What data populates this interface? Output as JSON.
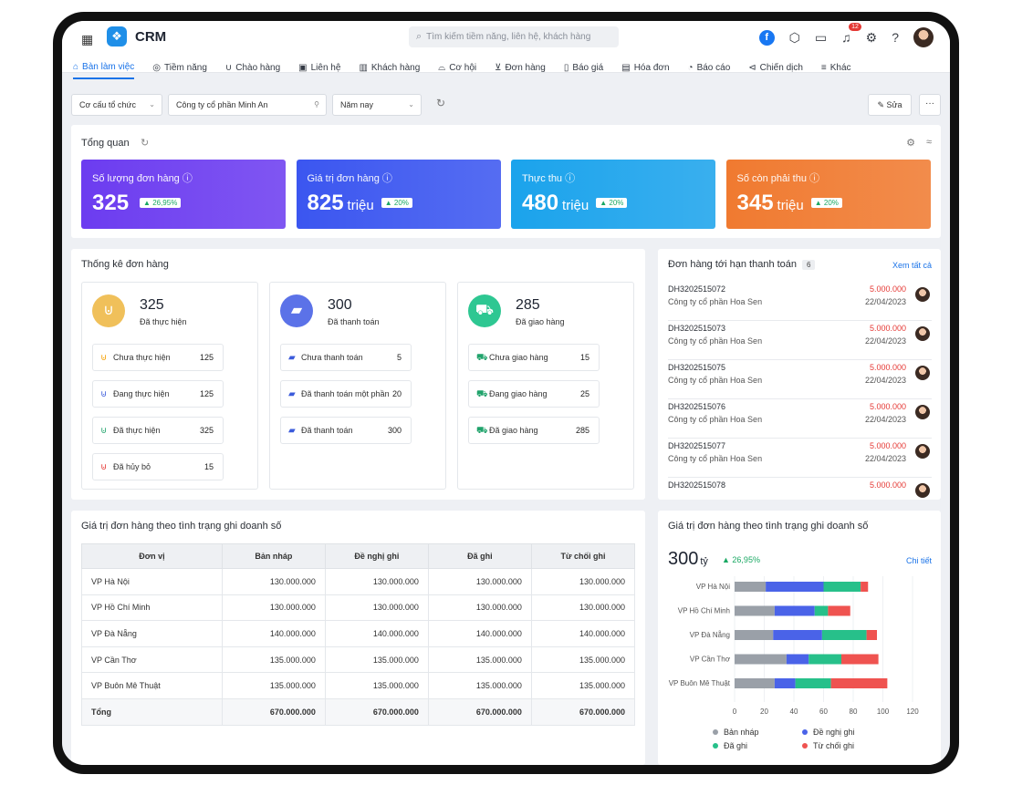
{
  "app": {
    "name": "CRM",
    "search_placeholder": "Tìm kiếm tiềm năng, liên hệ, khách hàng",
    "notif_count": "12"
  },
  "nav": [
    {
      "label": "Bàn làm việc",
      "icon": "home-icon"
    },
    {
      "label": "Tiềm năng",
      "icon": "target-icon"
    },
    {
      "label": "Chào hàng",
      "icon": "magnet-icon"
    },
    {
      "label": "Liên hệ",
      "icon": "contact-icon"
    },
    {
      "label": "Khách hàng",
      "icon": "customers-icon"
    },
    {
      "label": "Cơ hội",
      "icon": "opportunity-icon"
    },
    {
      "label": "Đơn hàng",
      "icon": "cart-icon"
    },
    {
      "label": "Báo giá",
      "icon": "quote-icon"
    },
    {
      "label": "Hóa đơn",
      "icon": "invoice-icon"
    },
    {
      "label": "Báo cáo",
      "icon": "report-icon"
    },
    {
      "label": "Chiến dịch",
      "icon": "campaign-icon"
    },
    {
      "label": "Khác",
      "icon": "menu-icon"
    }
  ],
  "filters": {
    "org": "Cơ cấu tổ chức",
    "company": "Công ty cổ phần Minh An",
    "period": "Năm nay",
    "edit": "Sửa",
    "more": "···"
  },
  "overview": {
    "title": "Tổng quan",
    "cards": [
      {
        "title": "Số lượng đơn hàng",
        "value": "325",
        "unit": "",
        "change": "26,95%",
        "color": "#6c3cf0"
      },
      {
        "title": "Giá trị đơn hàng",
        "value": "825",
        "unit": "triệu",
        "change": "20%",
        "color": "#3b56f0"
      },
      {
        "title": "Thực thu",
        "value": "480",
        "unit": "triệu",
        "change": "20%",
        "color": "#1ba3ec"
      },
      {
        "title": "Số còn phải thu",
        "value": "345",
        "unit": "triệu",
        "change": "20%",
        "color": "#f07a30"
      }
    ]
  },
  "order_stats": {
    "title": "Thống kê đơn hàng",
    "groups": [
      {
        "total": "325",
        "label": "Đã thực hiện",
        "color": "#f0c05a",
        "rows": [
          {
            "label": "Chưa thực hiện",
            "value": "125"
          },
          {
            "label": "Đang thực hiện",
            "value": "125"
          },
          {
            "label": "Đã thực hiện",
            "value": "325"
          },
          {
            "label": "Đã hủy bỏ",
            "value": "15"
          }
        ]
      },
      {
        "total": "300",
        "label": "Đã thanh toán",
        "color": "#5b72e8",
        "rows": [
          {
            "label": "Chưa thanh toán",
            "value": "5"
          },
          {
            "label": "Đã thanh toán một phần",
            "value": "20"
          },
          {
            "label": "Đã thanh toán",
            "value": "300"
          }
        ]
      },
      {
        "total": "285",
        "label": "Đã giao hàng",
        "color": "#2ec792",
        "rows": [
          {
            "label": "Chưa giao hàng",
            "value": "15"
          },
          {
            "label": "Đang giao hàng",
            "value": "25"
          },
          {
            "label": "Đã giao hàng",
            "value": "285"
          }
        ]
      }
    ]
  },
  "due": {
    "title": "Đơn hàng tới hạn thanh toán",
    "count": "6",
    "see_all": "Xem tất cả",
    "items": [
      {
        "code": "DH3202515072",
        "company": "Công ty cổ phần Hoa Sen",
        "amount": "5.000.000",
        "date": "22/04/2023"
      },
      {
        "code": "DH3202515073",
        "company": "Công ty cổ phần Hoa Sen",
        "amount": "5.000.000",
        "date": "22/04/2023"
      },
      {
        "code": "DH3202515075",
        "company": "Công ty cổ phần Hoa Sen",
        "amount": "5.000.000",
        "date": "22/04/2023"
      },
      {
        "code": "DH3202515076",
        "company": "Công ty cổ phần Hoa Sen",
        "amount": "5.000.000",
        "date": "22/04/2023"
      },
      {
        "code": "DH3202515077",
        "company": "Công ty cổ phần Hoa Sen",
        "amount": "5.000.000",
        "date": "22/04/2023"
      },
      {
        "code": "DH3202515078",
        "company": "",
        "amount": "5.000.000",
        "date": ""
      }
    ]
  },
  "table": {
    "title": "Giá trị đơn hàng theo tình trạng ghi doanh số",
    "headers": [
      "Đơn vị",
      "Bản nháp",
      "Đề nghị ghi",
      "Đã ghi",
      "Từ chối ghi"
    ],
    "rows": [
      [
        "VP Hà Nội",
        "130.000.000",
        "130.000.000",
        "130.000.000",
        "130.000.000"
      ],
      [
        "VP Hồ Chí Minh",
        "130.000.000",
        "130.000.000",
        "130.000.000",
        "130.000.000"
      ],
      [
        "VP Đà Nẵng",
        "140.000.000",
        "140.000.000",
        "140.000.000",
        "140.000.000"
      ],
      [
        "VP Cần Thơ",
        "135.000.000",
        "135.000.000",
        "135.000.000",
        "135.000.000"
      ],
      [
        "VP Buôn Mê Thuật",
        "135.000.000",
        "135.000.000",
        "135.000.000",
        "135.000.000"
      ],
      [
        "Tổng",
        "670.000.000",
        "670.000.000",
        "670.000.000",
        "670.000.000"
      ]
    ]
  },
  "chart_panel": {
    "title": "Giá trị đơn hàng theo tình trạng ghi doanh số",
    "total": "300",
    "total_unit": "tỷ",
    "change": "26,95%",
    "detail": "Chi tiết"
  },
  "chart_data": {
    "type": "bar",
    "orientation": "horizontal",
    "stacked": true,
    "categories": [
      "VP Hà Nội",
      "VP Hồ Chí Minh",
      "VP Đà Nẵng",
      "VP Cần Thơ",
      "VP Buôn Mê Thuật"
    ],
    "series": [
      {
        "name": "Bản nháp",
        "color": "#9aa0a8",
        "values": [
          21,
          27,
          26,
          35,
          27
        ]
      },
      {
        "name": "Đề nghị ghi",
        "color": "#4a63e8",
        "values": [
          39,
          27,
          33,
          15,
          14
        ]
      },
      {
        "name": "Đã ghi",
        "color": "#27c08a",
        "values": [
          25,
          9,
          30,
          22,
          24
        ]
      },
      {
        "name": "Từ chối ghi",
        "color": "#ef5350",
        "values": [
          5,
          15,
          7,
          25,
          38
        ]
      }
    ],
    "xlim": [
      0,
      120
    ],
    "xticks": [
      0,
      20,
      40,
      60,
      80,
      100,
      120
    ],
    "legend": "bottom"
  }
}
